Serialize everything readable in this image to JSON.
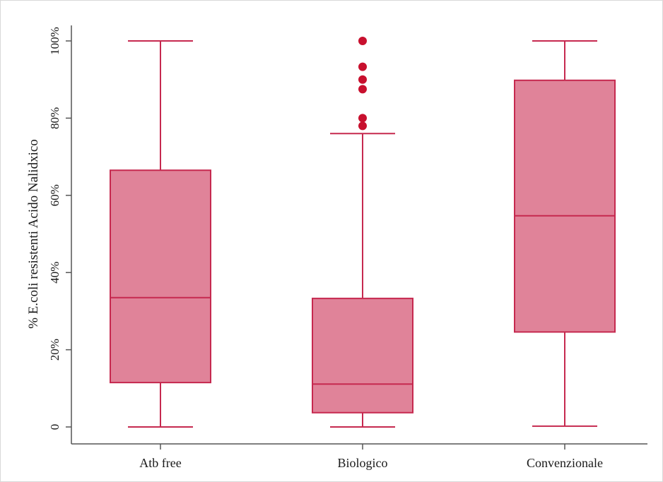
{
  "chart_data": {
    "type": "boxplot",
    "title": "",
    "xlabel": "",
    "ylabel": "% E.coli resistenti Acido Nalidxico",
    "ylim": [
      0,
      100
    ],
    "yticks": [
      0,
      20,
      40,
      60,
      80,
      100
    ],
    "ytick_labels": [
      "0",
      "20%",
      "40%",
      "60%",
      "80%",
      "100%"
    ],
    "categories": [
      "Atb free",
      "Biologico",
      "Convenzionale"
    ],
    "boxes": [
      {
        "whisker_low": 0,
        "q1": 11.5,
        "median": 33.5,
        "q3": 66.5,
        "whisker_high": 100,
        "outliers": []
      },
      {
        "whisker_low": 0,
        "q1": 3.7,
        "median": 11.1,
        "q3": 33.3,
        "whisker_high": 76,
        "outliers": [
          78,
          80,
          87.5,
          90,
          93.3,
          100
        ]
      },
      {
        "whisker_low": 0.2,
        "q1": 24.6,
        "median": 54.7,
        "q3": 89.8,
        "whisker_high": 100,
        "outliers": []
      }
    ],
    "grid": false,
    "legend": "none",
    "colors": {
      "box_fill": "#e08399",
      "box_stroke": "#c6294f",
      "outlier": "#c8102e",
      "axis": "#555555"
    }
  }
}
